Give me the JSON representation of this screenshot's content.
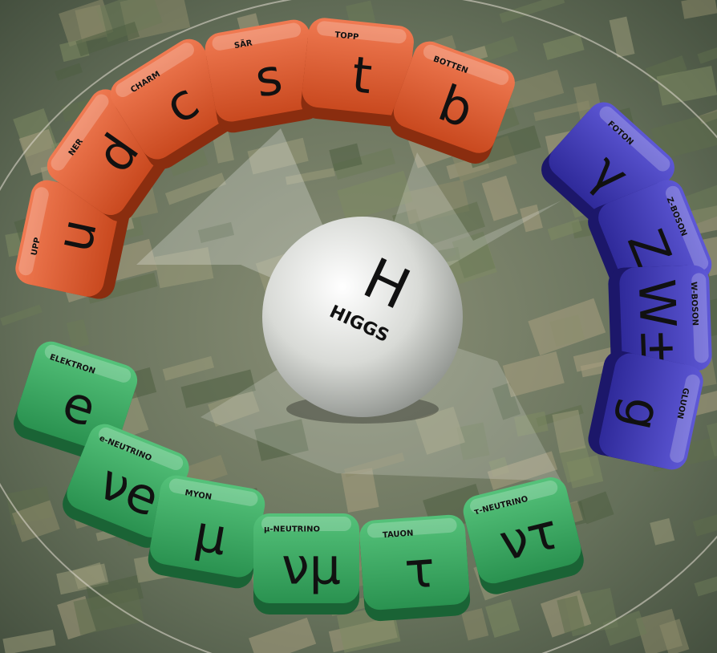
{
  "particles": {
    "quarks": [
      {
        "symbol": "u",
        "name": "UPP"
      },
      {
        "symbol": "d",
        "name": "NER"
      },
      {
        "symbol": "c",
        "name": "CHARM"
      },
      {
        "symbol": "s",
        "name": "SÄR"
      },
      {
        "symbol": "t",
        "name": "TOPP"
      },
      {
        "symbol": "b",
        "name": "BOTTEN"
      }
    ],
    "bosons": [
      {
        "symbol": "γ",
        "name": "FOTON"
      },
      {
        "symbol": "Z",
        "name": "Z-BOSON"
      },
      {
        "symbol": "W±",
        "name": "W-BOSON"
      },
      {
        "symbol": "g",
        "name": "GLUON"
      }
    ],
    "leptons": [
      {
        "symbol": "e",
        "name": "ELEKTRON"
      },
      {
        "symbol": "νe",
        "name": "e-NEUTRINO"
      },
      {
        "symbol": "μ",
        "name": "MYON"
      },
      {
        "symbol": "νμ",
        "name": "μ-NEUTRINO"
      },
      {
        "symbol": "τ",
        "name": "TAUON"
      },
      {
        "symbol": "ντ",
        "name": "τ-NEUTRINO"
      }
    ]
  },
  "higgs": {
    "symbol": "H",
    "name": "HIGGS"
  }
}
